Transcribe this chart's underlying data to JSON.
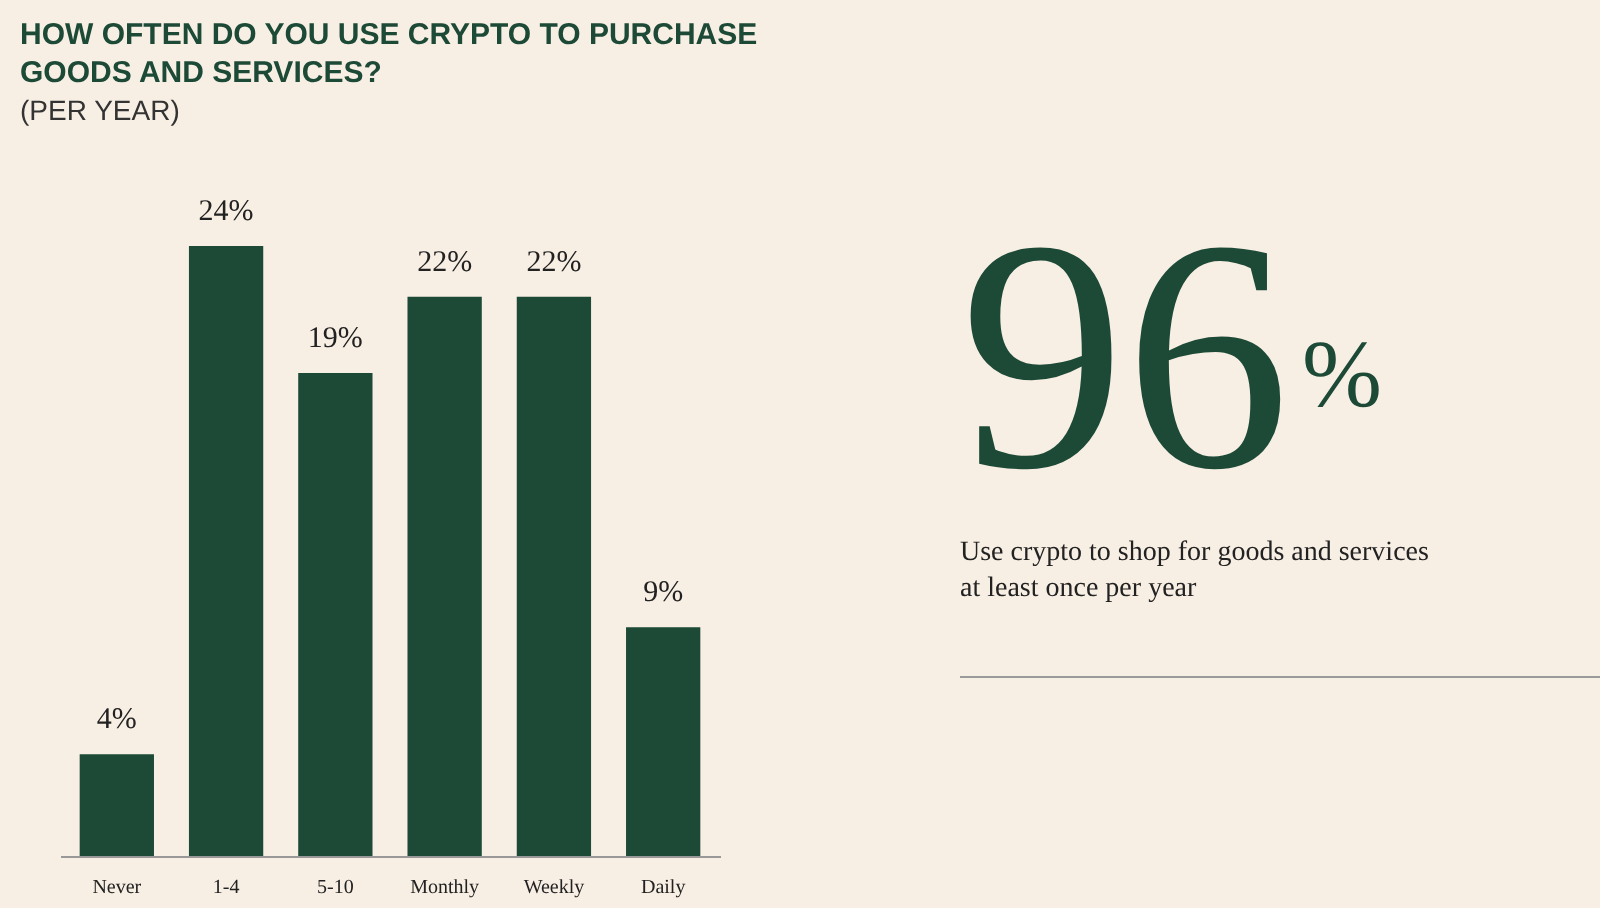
{
  "chart_data": {
    "type": "bar",
    "title": "HOW OFTEN DO YOU USE CRYPTO TO PURCHASE GOODS AND SERVICES?",
    "subtitle": "(PER YEAR)",
    "categories": [
      "Never",
      "1-4",
      "5-10",
      "Monthly",
      "Weekly",
      "Daily"
    ],
    "values": [
      4,
      24,
      19,
      22,
      22,
      9
    ],
    "value_labels": [
      "4%",
      "24%",
      "19%",
      "22%",
      "22%",
      "9%"
    ],
    "color": "#1d4a37",
    "annotations": [
      "96$^{%}$",
      "Use crypto to shop for goods and services at least once per year"
    ]
  }
}
